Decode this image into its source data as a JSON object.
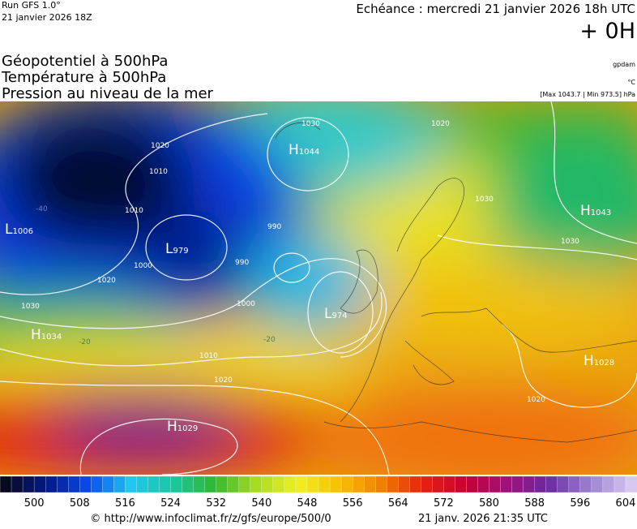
{
  "header": {
    "run": "Run GFS 1.0°",
    "date": "21 janvier 2026 18Z",
    "echeance": "Echéance : mercredi 21 janvier 2026 18h UTC",
    "offset": "+ 0H",
    "titles": [
      "Géopotentiel à 500hPa",
      "Température à 500hPa",
      "Pression au niveau de la mer"
    ],
    "units": [
      "gpdam",
      "°C",
      "[Max 1043.7 | Min 973.5] hPa"
    ]
  },
  "centers": [
    {
      "type": "H",
      "value": "1044"
    },
    {
      "type": "L",
      "value": "1006"
    },
    {
      "type": "L",
      "value": "979"
    },
    {
      "type": "H",
      "value": "1034"
    },
    {
      "type": "L",
      "value": "974"
    },
    {
      "type": "H",
      "value": "1043"
    },
    {
      "type": "H",
      "value": "1029"
    },
    {
      "type": "H",
      "value": "1028"
    }
  ],
  "isolines": [
    "1020",
    "1010",
    "990",
    "990",
    "1000",
    "1010",
    "1020",
    "1030",
    "1030",
    "1030",
    "1000",
    "1020",
    "1020",
    "-40",
    "-20",
    "-20",
    "1010",
    "1020",
    "1030"
  ],
  "scale": {
    "lim": [
      494,
      606
    ],
    "ticks": [
      500,
      508,
      516,
      524,
      532,
      540,
      548,
      556,
      564,
      572,
      580,
      588,
      596,
      604
    ],
    "stops": [
      "#0a0a1e",
      "#001a8c",
      "#0a4cf0",
      "#1ec8f0",
      "#18c8a0",
      "#30b830",
      "#a8dc20",
      "#f0f020",
      "#f8c000",
      "#f08000",
      "#e82010",
      "#c80030",
      "#a0107a",
      "#6a2aa0",
      "#9c80d0",
      "#d8c8f0"
    ]
  },
  "footer": {
    "url": "© http://www.infoclimat.fr/z/gfs/europe/500/0",
    "time": "21 janv. 2026 21:35 UTC"
  }
}
